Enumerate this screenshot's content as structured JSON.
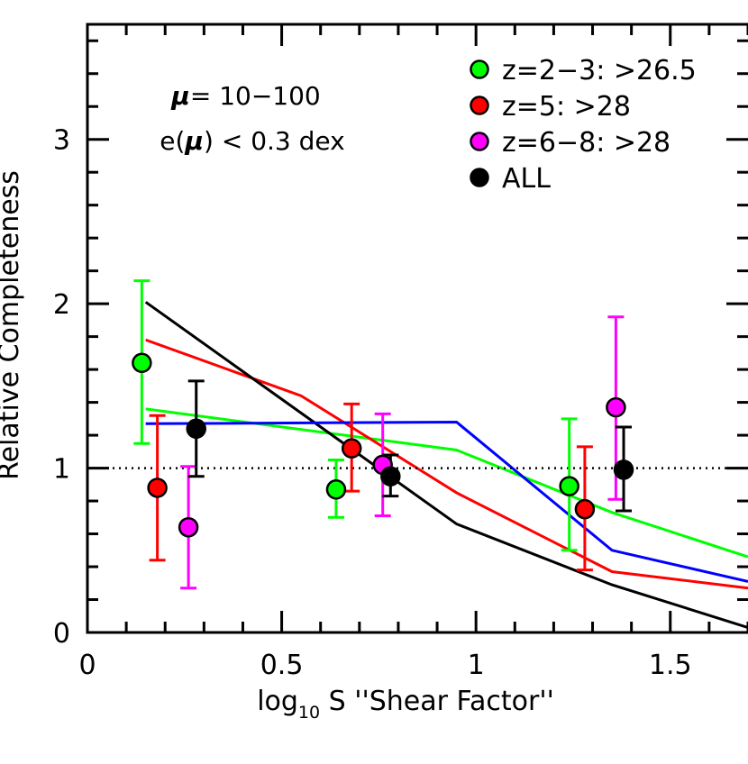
{
  "chart_data": {
    "type": "scatter",
    "xlabel_main": "log",
    "xlabel_sub": "10",
    "xlabel_rest": " S ''Shear Factor''",
    "ylabel": "Relative Completeness",
    "xlim": [
      0,
      1.7
    ],
    "ylim": [
      0,
      3.7
    ],
    "x_ticks": [
      "0",
      "0.5",
      "1",
      "1.5"
    ],
    "y_ticks": [
      "0",
      "1",
      "2",
      "3"
    ],
    "reference_line": 1,
    "annotation": {
      "line1_symbol": "μ",
      "line1_rest": "= 10−100",
      "line2_pre": "e(",
      "line2_symbol": "μ",
      "line2_post": ") < 0.3 dex"
    },
    "legend_position": "top-right",
    "series": [
      {
        "name": "z=2−3: >26.5",
        "color": "#00ff00",
        "points": [
          {
            "x": 0.14,
            "y": 1.64,
            "lo": 1.15,
            "hi": 2.14
          },
          {
            "x": 0.64,
            "y": 0.87,
            "lo": 0.7,
            "hi": 1.05
          },
          {
            "x": 1.24,
            "y": 0.89,
            "lo": 0.5,
            "hi": 1.3
          }
        ],
        "model": [
          {
            "x": 0.15,
            "y": 1.36
          },
          {
            "x": 0.95,
            "y": 1.11
          },
          {
            "x": 1.35,
            "y": 0.73
          },
          {
            "x": 1.7,
            "y": 0.46
          }
        ]
      },
      {
        "name": "z=5: >28",
        "color": "#ff0000",
        "points": [
          {
            "x": 0.18,
            "y": 0.88,
            "lo": 0.44,
            "hi": 1.32
          },
          {
            "x": 0.68,
            "y": 1.12,
            "lo": 0.86,
            "hi": 1.39
          },
          {
            "x": 1.28,
            "y": 0.75,
            "lo": 0.38,
            "hi": 1.13
          }
        ],
        "model": [
          {
            "x": 0.15,
            "y": 1.78
          },
          {
            "x": 0.55,
            "y": 1.44
          },
          {
            "x": 0.95,
            "y": 0.85
          },
          {
            "x": 1.35,
            "y": 0.37
          },
          {
            "x": 1.7,
            "y": 0.27
          }
        ]
      },
      {
        "name": "z=6−8: >28",
        "color": "#ff00ff",
        "points": [
          {
            "x": 0.26,
            "y": 0.64,
            "lo": 0.27,
            "hi": 1.01
          },
          {
            "x": 0.76,
            "y": 1.02,
            "lo": 0.71,
            "hi": 1.33
          },
          {
            "x": 1.36,
            "y": 1.37,
            "lo": 0.81,
            "hi": 1.92
          }
        ],
        "model": []
      },
      {
        "name": "ALL",
        "color": "#000000",
        "points": [
          {
            "x": 0.28,
            "y": 1.24,
            "lo": 0.95,
            "hi": 1.53
          },
          {
            "x": 0.78,
            "y": 0.95,
            "lo": 0.83,
            "hi": 1.08
          },
          {
            "x": 1.38,
            "y": 0.99,
            "lo": 0.74,
            "hi": 1.25
          }
        ],
        "model": [
          {
            "x": 0.15,
            "y": 2.01
          },
          {
            "x": 0.95,
            "y": 0.66
          },
          {
            "x": 1.35,
            "y": 0.29
          },
          {
            "x": 1.7,
            "y": 0.03
          }
        ]
      },
      {
        "color": "#0000ff",
        "points": [],
        "model": [
          {
            "x": 0.15,
            "y": 1.27
          },
          {
            "x": 0.95,
            "y": 1.28
          },
          {
            "x": 1.35,
            "y": 0.5
          },
          {
            "x": 1.7,
            "y": 0.31
          }
        ]
      }
    ]
  }
}
